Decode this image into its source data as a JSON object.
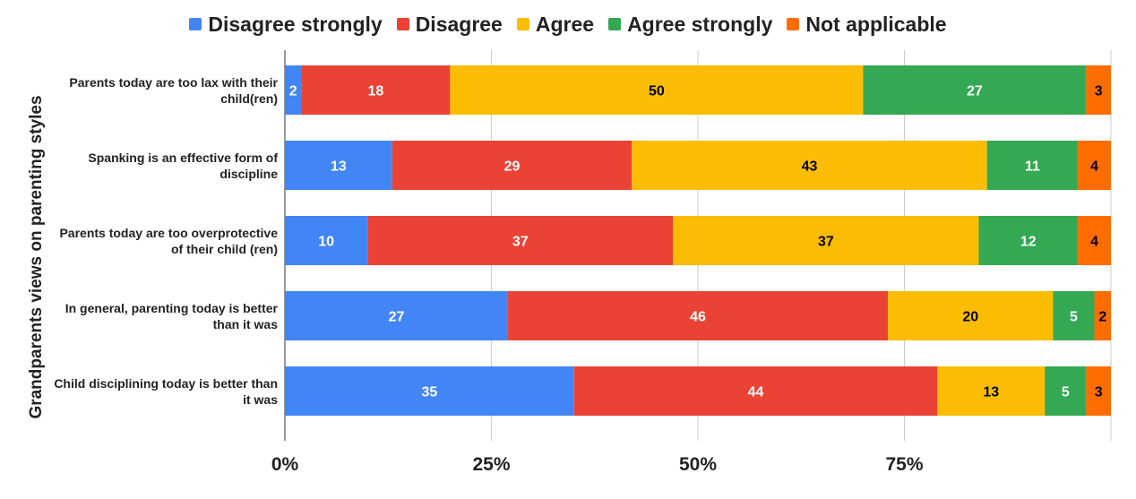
{
  "chart_data": {
    "type": "bar",
    "orientation": "horizontal",
    "stacked": true,
    "xlabel": "",
    "ylabel": "Grandparents views on parenting styles",
    "xlim": [
      0,
      100
    ],
    "x_ticks": [
      "0%",
      "25%",
      "50%",
      "75%"
    ],
    "legend_position": "top",
    "grid": true,
    "categories": [
      "Parents today are too lax with their child(ren)",
      "Spanking is an effective form of discipline",
      "Parents today are too overprotective of their child (ren)",
      "In general, parenting today is better than it was",
      "Child disciplining today is better than it was"
    ],
    "series": [
      {
        "name": "Disagree strongly",
        "color": "#4285f4",
        "label_color": "#ffffff",
        "values": [
          2,
          13,
          10,
          27,
          35
        ]
      },
      {
        "name": "Disagree",
        "color": "#ea4335",
        "label_color": "#ffffff",
        "values": [
          18,
          29,
          37,
          46,
          44
        ]
      },
      {
        "name": "Agree",
        "color": "#fbbc04",
        "label_color": "#000000",
        "values": [
          50,
          43,
          37,
          20,
          13
        ]
      },
      {
        "name": "Agree strongly",
        "color": "#34a853",
        "label_color": "#ffffff",
        "values": [
          27,
          11,
          12,
          5,
          5
        ]
      },
      {
        "name": "Not applicable",
        "color": "#ff6d01",
        "label_color": "#000000",
        "values": [
          3,
          4,
          4,
          2,
          3
        ]
      }
    ]
  }
}
